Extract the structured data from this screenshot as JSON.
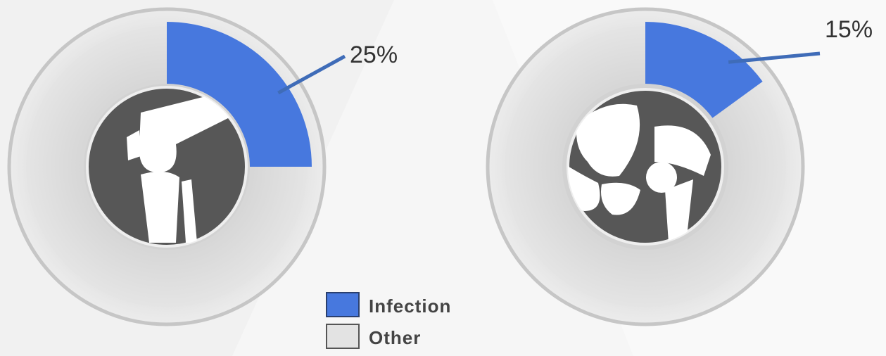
{
  "chart_data": [
    {
      "type": "pie",
      "categories": [
        "Infection",
        "Other"
      ],
      "colors": [
        "#4778de",
        "#e3e3e3"
      ],
      "values": [
        25,
        75
      ],
      "value_labels": [
        "25%",
        null
      ]
    },
    {
      "type": "pie",
      "values": [
        15,
        85
      ],
      "value_labels": [
        "15%",
        null
      ]
    }
  ]
}
